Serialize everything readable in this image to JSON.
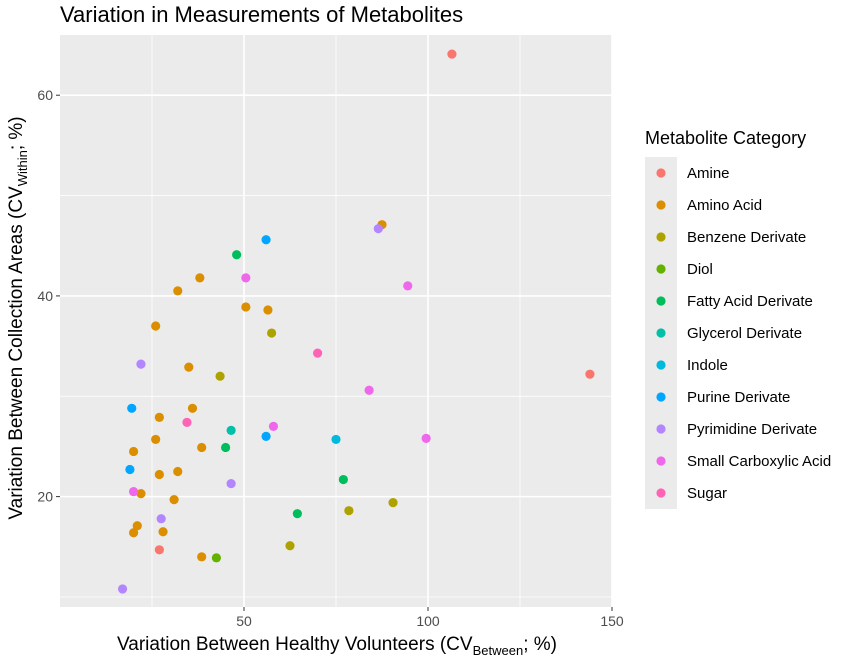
{
  "chart_data": {
    "type": "scatter",
    "title": "Variation in Measurements of Metabolites",
    "xlabel": {
      "main": "Variation Between Healthy Volunteers (CV",
      "sub": "Between",
      "tail": "; %)"
    },
    "ylabel": {
      "main": "Variation Between Collection Areas (CV",
      "sub": "Within",
      "tail": "; %)"
    },
    "xlim": [
      0,
      150
    ],
    "ylim": [
      9,
      66
    ],
    "xticks": [
      50,
      100,
      150
    ],
    "yticks": [
      20,
      40,
      60
    ],
    "grid": true,
    "legend": {
      "title": "Metabolite Category",
      "position": "right"
    },
    "series": [
      {
        "name": "Amine",
        "color": "#F8766D",
        "points": [
          [
            106.5,
            64.1
          ],
          [
            27,
            14.7
          ],
          [
            144,
            32.2
          ]
        ]
      },
      {
        "name": "Amino Acid",
        "color": "#DB8E00",
        "points": [
          [
            87.5,
            47.1
          ],
          [
            38,
            41.8
          ],
          [
            32,
            40.5
          ],
          [
            50.5,
            38.9
          ],
          [
            56.5,
            38.6
          ],
          [
            26,
            37.0
          ],
          [
            35,
            32.9
          ],
          [
            36,
            28.8
          ],
          [
            27,
            27.9
          ],
          [
            26,
            25.7
          ],
          [
            20,
            24.5
          ],
          [
            38.5,
            24.9
          ],
          [
            27,
            22.2
          ],
          [
            32,
            22.5
          ],
          [
            22,
            20.3
          ],
          [
            31,
            19.7
          ],
          [
            21,
            17.1
          ],
          [
            28,
            16.5
          ],
          [
            20,
            16.4
          ],
          [
            38.5,
            14.0
          ]
        ]
      },
      {
        "name": "Benzene Derivate",
        "color": "#AEA200",
        "points": [
          [
            57.5,
            36.3
          ],
          [
            43.5,
            32.0
          ],
          [
            90.5,
            19.4
          ],
          [
            78.5,
            18.6
          ],
          [
            62.5,
            15.1
          ]
        ]
      },
      {
        "name": "Diol",
        "color": "#64B200",
        "points": [
          [
            42.5,
            13.9
          ]
        ]
      },
      {
        "name": "Fatty Acid Derivate",
        "color": "#00BD5C",
        "points": [
          [
            48,
            44.1
          ],
          [
            45,
            24.9
          ],
          [
            77,
            21.7
          ],
          [
            64.5,
            18.3
          ]
        ]
      },
      {
        "name": "Glycerol Derivate",
        "color": "#00C1A7",
        "points": [
          [
            46.5,
            26.6
          ]
        ]
      },
      {
        "name": "Indole",
        "color": "#00BADE",
        "points": [
          [
            75,
            25.7
          ]
        ]
      },
      {
        "name": "Purine Derivate",
        "color": "#00A6FF",
        "points": [
          [
            56,
            45.6
          ],
          [
            19.5,
            28.8
          ],
          [
            56,
            26.0
          ],
          [
            19,
            22.7
          ]
        ]
      },
      {
        "name": "Pyrimidine Derivate",
        "color": "#B385FF",
        "points": [
          [
            86.5,
            46.7
          ],
          [
            22,
            33.2
          ],
          [
            46.5,
            21.3
          ],
          [
            27.5,
            17.8
          ],
          [
            17,
            10.8
          ]
        ]
      },
      {
        "name": "Small Carboxylic Acid",
        "color": "#EF67EB",
        "points": [
          [
            50.5,
            41.8
          ],
          [
            94.5,
            41.0
          ],
          [
            84,
            30.6
          ],
          [
            58,
            27.0
          ],
          [
            99.5,
            25.8
          ],
          [
            20,
            20.5
          ]
        ]
      },
      {
        "name": "Sugar",
        "color": "#FF63B6",
        "points": [
          [
            70,
            34.3
          ],
          [
            34.5,
            27.4
          ]
        ]
      }
    ]
  }
}
